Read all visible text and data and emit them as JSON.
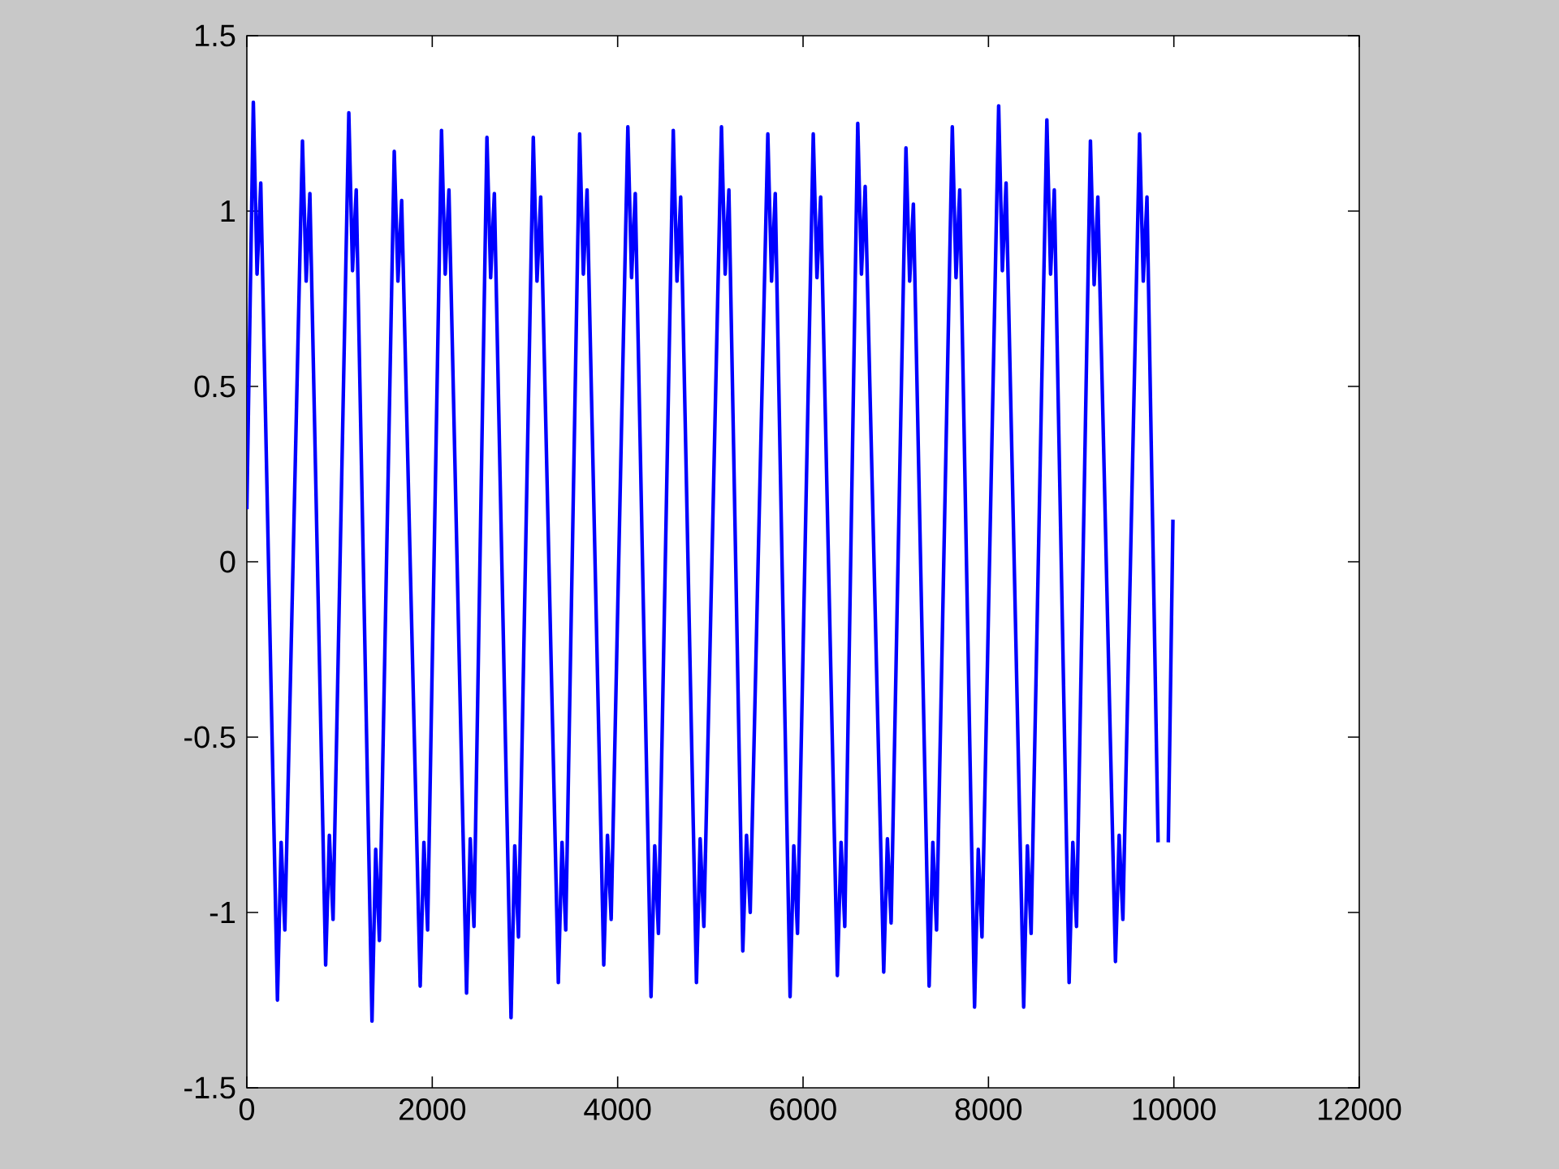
{
  "chart_data": {
    "type": "line",
    "x": [
      0,
      70,
      110,
      150,
      330,
      370,
      410,
      600,
      640,
      680,
      850,
      890,
      930,
      1100,
      1140,
      1180,
      1350,
      1390,
      1430,
      1590,
      1630,
      1670,
      1870,
      1910,
      1950,
      2100,
      2140,
      2180,
      2370,
      2410,
      2450,
      2590,
      2630,
      2670,
      2850,
      2890,
      2930,
      3090,
      3130,
      3170,
      3360,
      3400,
      3440,
      3590,
      3630,
      3670,
      3850,
      3890,
      3930,
      4110,
      4150,
      4190,
      4360,
      4400,
      4440,
      4600,
      4640,
      4680,
      4850,
      4890,
      4930,
      5120,
      5160,
      5200,
      5350,
      5390,
      5430,
      5620,
      5660,
      5700,
      5860,
      5900,
      5940,
      6110,
      6150,
      6190,
      6370,
      6410,
      6450,
      6590,
      6630,
      6670,
      6870,
      6910,
      6950,
      7110,
      7150,
      7190,
      7360,
      7400,
      7440,
      7610,
      7650,
      7690,
      7850,
      7890,
      7930,
      8110,
      8150,
      8190,
      8380,
      8420,
      8460,
      8630,
      8670,
      8710,
      8870,
      8910,
      8950,
      9100,
      9140,
      9180,
      9370,
      9410,
      9450,
      9630,
      9670,
      9710,
      9830,
      9880,
      9940,
      9990
    ],
    "series": [
      {
        "color": "#0000ff",
        "values": [
          0.15,
          1.31,
          0.82,
          1.08,
          -1.25,
          -0.8,
          -1.05,
          1.2,
          0.8,
          1.05,
          -1.15,
          -0.78,
          -1.02,
          1.28,
          0.83,
          1.06,
          -1.31,
          -0.82,
          -1.08,
          1.17,
          0.8,
          1.03,
          -1.21,
          -0.8,
          -1.05,
          1.23,
          0.82,
          1.06,
          -1.23,
          -0.79,
          -1.04,
          1.21,
          0.81,
          1.05,
          -1.3,
          -0.81,
          -1.07,
          1.21,
          0.8,
          1.04,
          -1.2,
          -0.8,
          -1.05,
          1.22,
          0.82,
          1.06,
          -1.15,
          -0.78,
          -1.02,
          1.24,
          0.81,
          1.05,
          -1.24,
          -0.81,
          -1.06,
          1.23,
          0.8,
          1.04,
          -1.2,
          -0.79,
          -1.04,
          1.24,
          0.82,
          1.06,
          -1.11,
          -0.78,
          -1.0,
          1.22,
          0.8,
          1.05,
          -1.24,
          -0.81,
          -1.06,
          1.22,
          0.81,
          1.04,
          -1.18,
          -0.8,
          -1.04,
          1.25,
          0.82,
          1.07,
          -1.17,
          -0.79,
          -1.03,
          1.18,
          0.8,
          1.02,
          -1.21,
          -0.8,
          -1.05,
          1.24,
          0.81,
          1.06,
          -1.27,
          -0.82,
          -1.07,
          1.3,
          0.83,
          1.08,
          -1.27,
          -0.81,
          -1.06,
          1.26,
          0.82,
          1.06,
          -1.2,
          -0.8,
          -1.04,
          1.2,
          0.79,
          1.04,
          -1.14,
          -0.78,
          -1.02,
          1.22,
          0.8,
          1.04,
          -0.8,
          null,
          -0.8,
          0.12
        ]
      }
    ],
    "xlim": [
      0,
      12000
    ],
    "ylim": [
      -1.5,
      1.5
    ],
    "xticks": [
      0,
      2000,
      4000,
      6000,
      8000,
      10000,
      12000
    ],
    "yticks": [
      -1.5,
      -1,
      -0.5,
      0,
      0.5,
      1,
      1.5
    ],
    "line_style": "solid"
  }
}
